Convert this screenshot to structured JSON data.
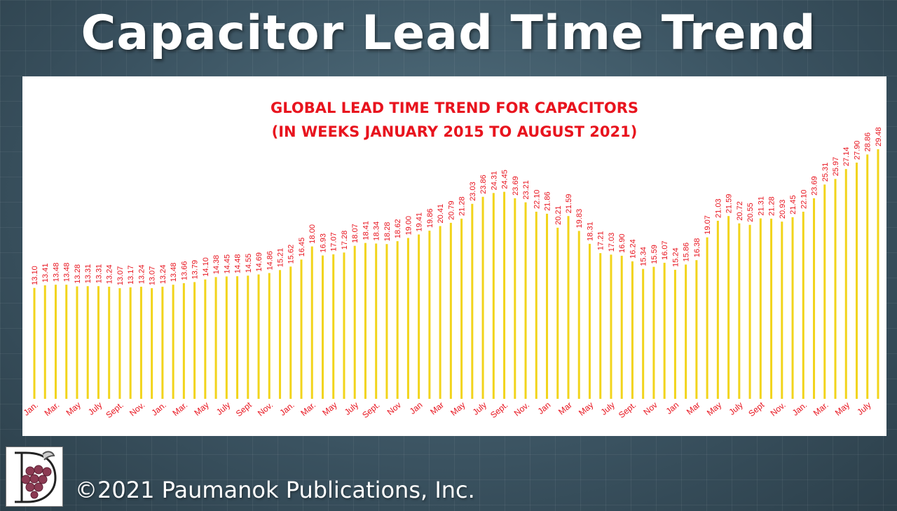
{
  "slide": {
    "title": "Capacitor Lead Time Trend",
    "copyright": "©2021 Paumanok Publications, Inc."
  },
  "colors": {
    "bar": "#f2d41b",
    "label": "#e8141e",
    "title": "#e8141e"
  },
  "chart_data": {
    "type": "bar",
    "title": "GLOBAL LEAD TIME TREND FOR CAPACITORS",
    "subtitle": "(IN WEEKS JANUARY 2015 TO AUGUST 2021)",
    "xlabel": "",
    "ylabel": "",
    "ylim": [
      0,
      30
    ],
    "grid": false,
    "legend": "none",
    "values": [
      13.1,
      13.41,
      13.48,
      13.48,
      13.28,
      13.31,
      13.31,
      13.24,
      13.07,
      13.17,
      13.24,
      13.07,
      13.24,
      13.48,
      13.66,
      13.79,
      14.1,
      14.38,
      14.45,
      14.48,
      14.55,
      14.69,
      14.86,
      15.21,
      15.62,
      16.45,
      18.0,
      16.93,
      17.07,
      17.28,
      18.07,
      18.41,
      18.34,
      18.28,
      18.62,
      19.0,
      19.41,
      19.86,
      20.41,
      20.79,
      21.28,
      23.03,
      23.86,
      24.31,
      24.45,
      23.69,
      23.21,
      22.1,
      21.86,
      20.21,
      21.59,
      19.83,
      18.31,
      17.21,
      17.03,
      16.9,
      16.24,
      15.34,
      15.59,
      16.07,
      15.24,
      15.86,
      16.38,
      19.07,
      21.03,
      21.59,
      20.72,
      20.55,
      21.31,
      21.28,
      20.93,
      21.45,
      22.1,
      23.69,
      25.31,
      25.97,
      27.14,
      27.9,
      28.86,
      29.48
    ],
    "tick_labels": [
      {
        "index": 0,
        "label": "Jan."
      },
      {
        "index": 2,
        "label": "Mar."
      },
      {
        "index": 4,
        "label": "May"
      },
      {
        "index": 6,
        "label": "July"
      },
      {
        "index": 8,
        "label": "Sept."
      },
      {
        "index": 10,
        "label": "Nov."
      },
      {
        "index": 12,
        "label": "Jan."
      },
      {
        "index": 14,
        "label": "Mar."
      },
      {
        "index": 16,
        "label": "May"
      },
      {
        "index": 18,
        "label": "July"
      },
      {
        "index": 20,
        "label": "Sept"
      },
      {
        "index": 22,
        "label": "Nov."
      },
      {
        "index": 24,
        "label": "Jan."
      },
      {
        "index": 26,
        "label": "Mar."
      },
      {
        "index": 28,
        "label": "May"
      },
      {
        "index": 30,
        "label": "July"
      },
      {
        "index": 32,
        "label": "Sept."
      },
      {
        "index": 34,
        "label": "Nov"
      },
      {
        "index": 36,
        "label": "Jan"
      },
      {
        "index": 38,
        "label": "Mar"
      },
      {
        "index": 40,
        "label": "May"
      },
      {
        "index": 42,
        "label": "July"
      },
      {
        "index": 44,
        "label": "Sept."
      },
      {
        "index": 46,
        "label": "Nov."
      },
      {
        "index": 48,
        "label": "Jan"
      },
      {
        "index": 50,
        "label": "Mar"
      },
      {
        "index": 52,
        "label": "May"
      },
      {
        "index": 54,
        "label": "July"
      },
      {
        "index": 56,
        "label": "Sept."
      },
      {
        "index": 58,
        "label": "Nov"
      },
      {
        "index": 60,
        "label": "Jan"
      },
      {
        "index": 62,
        "label": "Mar"
      },
      {
        "index": 64,
        "label": "May"
      },
      {
        "index": 66,
        "label": "July"
      },
      {
        "index": 68,
        "label": "Sept"
      },
      {
        "index": 70,
        "label": "Nov."
      },
      {
        "index": 72,
        "label": "Jan."
      },
      {
        "index": 74,
        "label": "Mar."
      },
      {
        "index": 76,
        "label": "May"
      },
      {
        "index": 78,
        "label": "July"
      }
    ]
  }
}
